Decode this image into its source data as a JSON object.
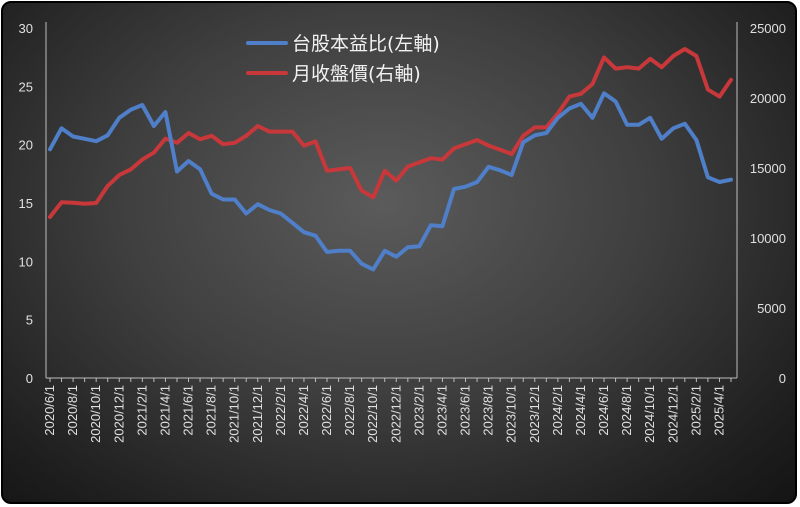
{
  "chart_data": {
    "type": "line",
    "x": [
      "2020/6/1",
      "2020/7/1",
      "2020/8/1",
      "2020/9/1",
      "2020/10/1",
      "2020/11/1",
      "2020/12/1",
      "2021/1/1",
      "2021/2/1",
      "2021/3/1",
      "2021/4/1",
      "2021/5/1",
      "2021/6/1",
      "2021/7/1",
      "2021/8/1",
      "2021/9/1",
      "2021/10/1",
      "2021/11/1",
      "2021/12/1",
      "2022/1/1",
      "2022/2/1",
      "2022/3/1",
      "2022/4/1",
      "2022/5/1",
      "2022/6/1",
      "2022/7/1",
      "2022/8/1",
      "2022/9/1",
      "2022/10/1",
      "2022/11/1",
      "2022/12/1",
      "2023/1/1",
      "2023/2/1",
      "2023/3/1",
      "2023/4/1",
      "2023/5/1",
      "2023/6/1",
      "2023/7/1",
      "2023/8/1",
      "2023/9/1",
      "2023/10/1",
      "2023/11/1",
      "2023/12/1",
      "2024/1/1",
      "2024/2/1",
      "2024/3/1",
      "2024/4/1",
      "2024/5/1",
      "2024/6/1",
      "2024/7/1",
      "2024/8/1",
      "2024/9/1",
      "2024/10/1",
      "2024/11/1",
      "2024/12/1",
      "2025/1/1",
      "2025/2/1",
      "2025/3/1",
      "2025/4/1",
      "2025/5/1"
    ],
    "x_tick_labels": [
      "2020/6/1",
      "2020/8/1",
      "2020/10/1",
      "2020/12/1",
      "2021/2/1",
      "2021/4/1",
      "2021/6/1",
      "2021/8/1",
      "2021/10/1",
      "2021/12/1",
      "2022/2/1",
      "2022/4/1",
      "2022/6/1",
      "2022/8/1",
      "2022/10/1",
      "2022/12/1",
      "2023/2/1",
      "2023/4/1",
      "2023/6/1",
      "2023/8/1",
      "2023/10/1",
      "2023/12/1",
      "2024/2/1",
      "2024/4/1",
      "2024/6/1",
      "2024/8/1",
      "2024/10/1",
      "2024/12/1",
      "2025/2/1",
      "2025/4/1"
    ],
    "left_axis": {
      "ylim": [
        0,
        30
      ],
      "ticks": [
        "0",
        "5",
        "10",
        "15",
        "20",
        "25",
        "30"
      ]
    },
    "right_axis": {
      "ylim": [
        0,
        25000
      ],
      "ticks": [
        "0",
        "5000",
        "10000",
        "15000",
        "20000",
        "25000"
      ]
    },
    "series": [
      {
        "name": "台股本益比(左軸)",
        "axis": "left",
        "color": "#4f7fc8",
        "values": [
          19.6,
          21.4,
          20.7,
          20.5,
          20.3,
          20.8,
          22.3,
          23.0,
          23.4,
          21.6,
          22.8,
          17.7,
          18.6,
          17.9,
          15.8,
          15.3,
          15.3,
          14.1,
          14.9,
          14.4,
          14.1,
          13.3,
          12.5,
          12.2,
          10.8,
          10.9,
          10.9,
          9.8,
          9.3,
          10.9,
          10.4,
          11.2,
          11.3,
          13.1,
          13.0,
          16.2,
          16.4,
          16.8,
          18.1,
          17.8,
          17.4,
          20.2,
          20.8,
          21.0,
          22.3,
          23.1,
          23.5,
          22.3,
          24.4,
          23.7,
          21.7,
          21.7,
          22.3,
          20.5,
          21.4,
          21.8,
          20.4,
          17.2,
          16.8,
          17.0
        ]
      },
      {
        "name": "月收盤價(右軸)",
        "axis": "right",
        "color": "#c8383a",
        "values": [
          11500,
          12550,
          12520,
          12450,
          12500,
          13720,
          14500,
          14900,
          15600,
          16100,
          17100,
          16800,
          17500,
          17050,
          17300,
          16700,
          16800,
          17300,
          18000,
          17600,
          17600,
          17600,
          16600,
          16900,
          14800,
          14900,
          15000,
          13400,
          12900,
          14800,
          14100,
          15100,
          15400,
          15700,
          15600,
          16400,
          16700,
          17000,
          16600,
          16300,
          16000,
          17300,
          17900,
          17900,
          18900,
          20100,
          20300,
          21000,
          22900,
          22100,
          22200,
          22100,
          22800,
          22200,
          23000,
          23500,
          23000,
          20600,
          20100,
          21300
        ]
      }
    ]
  }
}
